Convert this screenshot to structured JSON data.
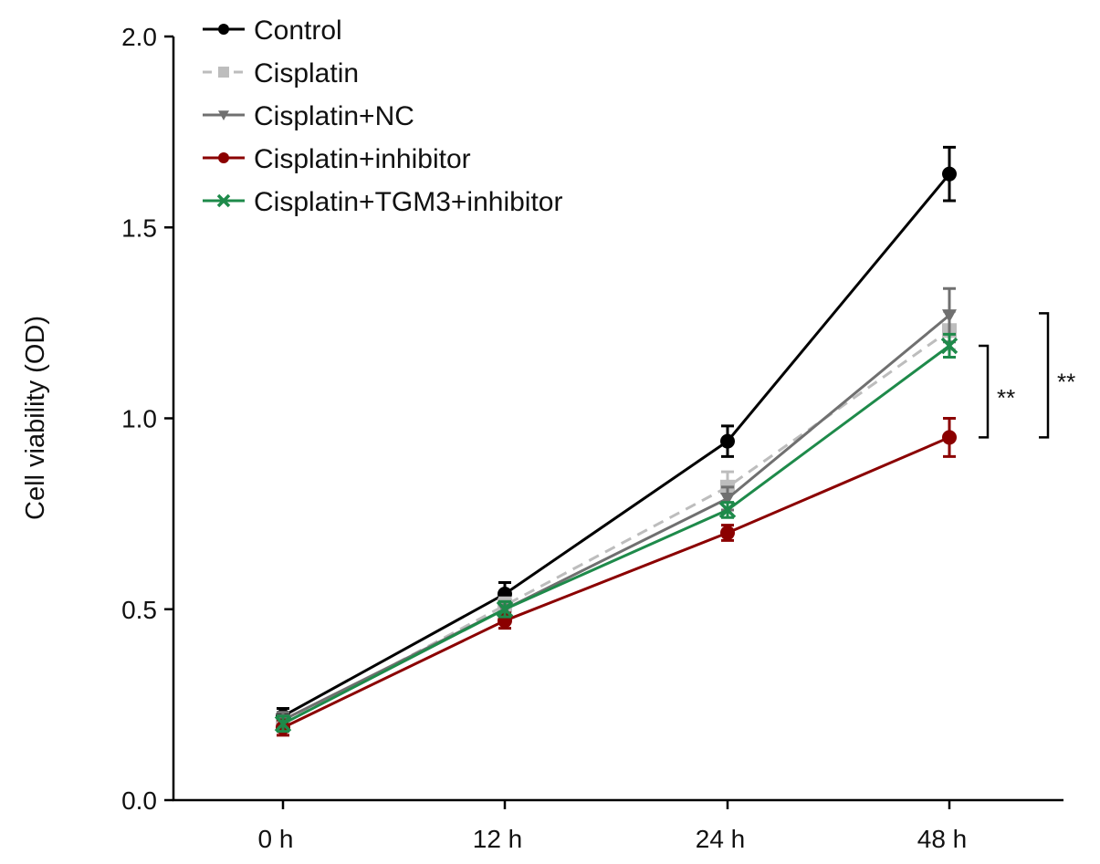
{
  "chart_data": {
    "type": "line",
    "title": "",
    "xlabel": "",
    "ylabel": "Cell viability (OD)",
    "categories": [
      "0 h",
      "12 h",
      "24 h",
      "48 h"
    ],
    "ylim": [
      0,
      2.0
    ],
    "yticks": [
      "0.0",
      "0.5",
      "1.0",
      "1.5",
      "2.0"
    ],
    "ytick_values": [
      0,
      0.5,
      1.0,
      1.5,
      2.0
    ],
    "grid": false,
    "legend_position": "top-left",
    "series": [
      {
        "name": "Control",
        "color": "#000000",
        "marker": "circle",
        "dash": false,
        "values": [
          0.22,
          0.54,
          0.94,
          1.64
        ],
        "errors": [
          0.02,
          0.03,
          0.04,
          0.07
        ]
      },
      {
        "name": "Cisplatin",
        "color": "#bdbdbd",
        "marker": "square",
        "dash": true,
        "values": [
          0.2,
          0.51,
          0.82,
          1.23
        ],
        "errors": [
          0.02,
          0.02,
          0.04,
          0.05
        ]
      },
      {
        "name": "Cisplatin+NC",
        "color": "#707070",
        "marker": "triangle-down",
        "dash": false,
        "values": [
          0.21,
          0.5,
          0.79,
          1.27
        ],
        "errors": [
          0.02,
          0.02,
          0.03,
          0.07
        ]
      },
      {
        "name": "Cisplatin+inhibitor",
        "color": "#8b0000",
        "marker": "circle",
        "dash": false,
        "values": [
          0.19,
          0.47,
          0.7,
          0.95
        ],
        "errors": [
          0.02,
          0.02,
          0.02,
          0.05
        ]
      },
      {
        "name": "Cisplatin+TGM3+inhibitor",
        "color": "#1e8a4a",
        "marker": "x",
        "dash": false,
        "values": [
          0.2,
          0.5,
          0.76,
          1.19
        ],
        "errors": [
          0.02,
          0.02,
          0.02,
          0.03
        ]
      }
    ],
    "annotations": [
      {
        "text": "**",
        "from": 1.19,
        "to": 0.95,
        "category": "48 h"
      },
      {
        "text": "**",
        "from": 1.275,
        "to": 0.95,
        "category": "48 h"
      }
    ]
  }
}
